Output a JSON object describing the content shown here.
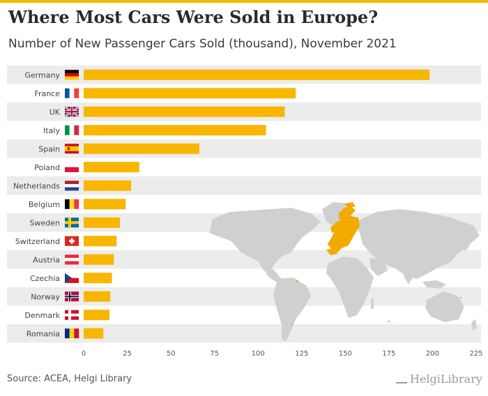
{
  "header": {
    "title": "Where Most Cars Were Sold in Europe?",
    "subtitle": "Number of New Passenger Cars Sold (thousand), November 2021"
  },
  "footer": {
    "source": "Source: ACEA, Helgi Library",
    "brand": "HelgiLibrary"
  },
  "colors": {
    "bar": "#f9b600",
    "band": "#ececec",
    "accent": "#f6b700",
    "map_land": "#d0d0d0"
  },
  "chart_data": {
    "type": "bar",
    "orientation": "horizontal",
    "categories": [
      "Germany",
      "France",
      "UK",
      "Italy",
      "Spain",
      "Poland",
      "Netherlands",
      "Belgium",
      "Sweden",
      "Switzerland",
      "Austria",
      "Czechia",
      "Norway",
      "Denmark",
      "Romania"
    ],
    "flags": [
      "flag-germany-icon",
      "flag-france-icon",
      "flag-uk-icon",
      "flag-italy-icon",
      "flag-spain-icon",
      "flag-poland-icon",
      "flag-netherlands-icon",
      "flag-belgium-icon",
      "flag-sweden-icon",
      "flag-switzerland-icon",
      "flag-austria-icon",
      "flag-czechia-icon",
      "flag-norway-icon",
      "flag-denmark-icon",
      "flag-romania-icon"
    ],
    "values": [
      198.3,
      121.6,
      115.3,
      104.5,
      66.3,
      31.9,
      27.2,
      24.1,
      20.8,
      18.9,
      17.3,
      16.2,
      15.3,
      14.8,
      11.3
    ],
    "xlim": [
      0,
      225
    ],
    "xticks": [
      0,
      25,
      50,
      75,
      100,
      125,
      150,
      175,
      200,
      225
    ],
    "grid": false,
    "background_map": "world-map-europe-highlighted"
  }
}
